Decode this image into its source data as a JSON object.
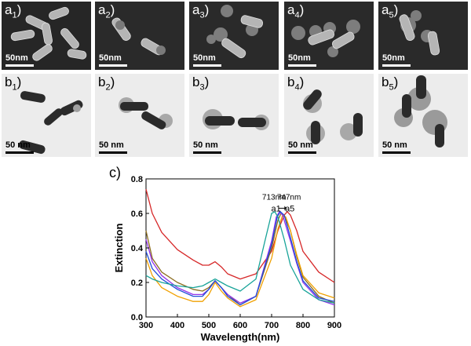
{
  "sem_panels": [
    {
      "letter": "a",
      "sub": "1",
      "scale": "50nm"
    },
    {
      "letter": "a",
      "sub": "2",
      "scale": "50nm"
    },
    {
      "letter": "a",
      "sub": "3",
      "scale": "50nm"
    },
    {
      "letter": "a",
      "sub": "4",
      "scale": "50nm"
    },
    {
      "letter": "a",
      "sub": "5",
      "scale": "50nm"
    }
  ],
  "tem_panels": [
    {
      "letter": "b",
      "sub": "1",
      "scale": "50 nm"
    },
    {
      "letter": "b",
      "sub": "2",
      "scale": "50 nm"
    },
    {
      "letter": "b",
      "sub": "3",
      "scale": "50 nm"
    },
    {
      "letter": "b",
      "sub": "4",
      "scale": "50 nm"
    },
    {
      "letter": "b",
      "sub": "5",
      "scale": "50 nm"
    }
  ],
  "chart_panel_label": "c)",
  "chart_data": {
    "type": "line",
    "xlabel": "Wavelength(nm)",
    "ylabel": "Extinction",
    "xlim": [
      300,
      900
    ],
    "ylim": [
      0.0,
      0.8
    ],
    "xticks": [
      300,
      400,
      500,
      600,
      700,
      800,
      900
    ],
    "yticks": [
      0.0,
      0.2,
      0.4,
      0.6,
      0.8
    ],
    "annotations": {
      "left_peak": "713nm",
      "right_peak": "747nm",
      "arrow_from": "a1",
      "arrow_to": "a5"
    },
    "series": [
      {
        "color": "#d62728",
        "x": [
          300,
          320,
          350,
          400,
          450,
          480,
          500,
          520,
          540,
          560,
          600,
          650,
          700,
          720,
          740,
          750,
          760,
          780,
          800,
          850,
          900
        ],
        "y": [
          0.74,
          0.6,
          0.49,
          0.39,
          0.33,
          0.3,
          0.3,
          0.32,
          0.29,
          0.25,
          0.22,
          0.25,
          0.38,
          0.5,
          0.59,
          0.61,
          0.59,
          0.5,
          0.38,
          0.26,
          0.2
        ]
      },
      {
        "color": "#8c6d1f",
        "x": [
          300,
          320,
          350,
          400,
          450,
          480,
          500,
          520,
          540,
          560,
          600,
          650,
          700,
          720,
          730,
          740,
          760,
          780,
          800,
          850,
          900
        ],
        "y": [
          0.5,
          0.34,
          0.26,
          0.2,
          0.16,
          0.15,
          0.17,
          0.21,
          0.17,
          0.13,
          0.07,
          0.12,
          0.4,
          0.56,
          0.6,
          0.59,
          0.5,
          0.35,
          0.23,
          0.12,
          0.08
        ]
      },
      {
        "color": "#f0a000",
        "x": [
          300,
          320,
          350,
          400,
          450,
          480,
          500,
          520,
          540,
          560,
          600,
          650,
          700,
          720,
          735,
          745,
          760,
          780,
          800,
          850,
          900
        ],
        "y": [
          0.34,
          0.24,
          0.17,
          0.12,
          0.09,
          0.09,
          0.13,
          0.2,
          0.15,
          0.11,
          0.06,
          0.1,
          0.34,
          0.51,
          0.59,
          0.58,
          0.5,
          0.36,
          0.24,
          0.14,
          0.11
        ]
      },
      {
        "color": "#9333ea",
        "x": [
          300,
          320,
          350,
          400,
          450,
          480,
          500,
          520,
          540,
          560,
          600,
          650,
          700,
          715,
          725,
          735,
          760,
          780,
          800,
          850,
          900
        ],
        "y": [
          0.45,
          0.32,
          0.24,
          0.17,
          0.13,
          0.13,
          0.16,
          0.21,
          0.17,
          0.13,
          0.08,
          0.12,
          0.44,
          0.58,
          0.61,
          0.59,
          0.44,
          0.31,
          0.2,
          0.1,
          0.07
        ]
      },
      {
        "color": "#1f4ed8",
        "x": [
          300,
          320,
          350,
          400,
          450,
          480,
          500,
          520,
          540,
          560,
          600,
          650,
          700,
          718,
          728,
          740,
          760,
          780,
          800,
          850,
          900
        ],
        "y": [
          0.38,
          0.28,
          0.22,
          0.16,
          0.12,
          0.12,
          0.16,
          0.21,
          0.17,
          0.12,
          0.07,
          0.12,
          0.42,
          0.58,
          0.61,
          0.59,
          0.46,
          0.32,
          0.21,
          0.11,
          0.09
        ]
      },
      {
        "color": "#17a398",
        "x": [
          300,
          320,
          350,
          400,
          450,
          480,
          500,
          520,
          540,
          560,
          600,
          650,
          680,
          700,
          710,
          720,
          740,
          760,
          800,
          850,
          900
        ],
        "y": [
          0.24,
          0.22,
          0.2,
          0.18,
          0.17,
          0.18,
          0.2,
          0.22,
          0.2,
          0.18,
          0.15,
          0.22,
          0.45,
          0.6,
          0.61,
          0.58,
          0.45,
          0.3,
          0.16,
          0.1,
          0.08
        ]
      }
    ]
  }
}
